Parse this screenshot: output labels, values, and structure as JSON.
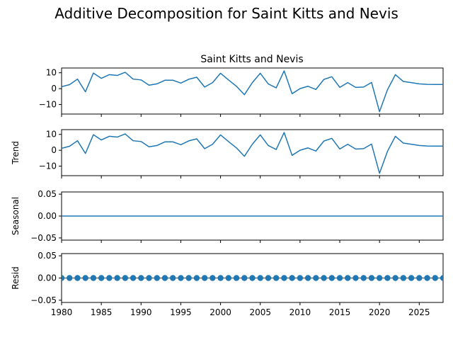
{
  "figure": {
    "suptitle": "Additive Decomposition for Saint Kitts and Nevis"
  },
  "chart_data": {
    "type": "line",
    "title": "Saint Kitts and Nevis",
    "x_label": "",
    "x_range": [
      1980,
      2028
    ],
    "x_ticks": [
      1980,
      1985,
      1990,
      1995,
      2000,
      2005,
      2010,
      2015,
      2020,
      2025
    ],
    "line_color": "#1f77b4",
    "x": [
      1980,
      1981,
      1982,
      1983,
      1984,
      1985,
      1986,
      1987,
      1988,
      1989,
      1990,
      1991,
      1992,
      1993,
      1994,
      1995,
      1996,
      1997,
      1998,
      1999,
      2000,
      2001,
      2002,
      2003,
      2004,
      2005,
      2006,
      2007,
      2008,
      2009,
      2010,
      2011,
      2012,
      2013,
      2014,
      2015,
      2016,
      2017,
      2018,
      2019,
      2020,
      2021,
      2022,
      2023,
      2024,
      2025,
      2026,
      2027,
      2028
    ],
    "panels": [
      {
        "name": "observed",
        "ylabel": "",
        "style": "line",
        "y_range": [
          -16,
          13
        ],
        "y_ticks": [
          10,
          0,
          -10
        ],
        "y_tick_labels": [
          "10",
          "0",
          "−10"
        ],
        "values": [
          1.2,
          2.5,
          6.0,
          -2.0,
          9.8,
          6.5,
          8.8,
          8.3,
          10.3,
          6.0,
          5.5,
          2.2,
          3.0,
          5.3,
          5.3,
          3.5,
          5.9,
          7.2,
          1.0,
          3.8,
          9.7,
          5.5,
          1.5,
          -3.8,
          3.8,
          9.7,
          3.0,
          0.5,
          11.2,
          -3.2,
          0.0,
          1.5,
          -0.5,
          5.8,
          7.5,
          0.8,
          3.8,
          0.8,
          1.0,
          3.9,
          -14.5,
          -0.7,
          8.8,
          4.5,
          3.8,
          3.0,
          2.7,
          2.6,
          2.6
        ]
      },
      {
        "name": "trend",
        "ylabel": "Trend",
        "style": "line",
        "y_range": [
          -16,
          13
        ],
        "y_ticks": [
          10,
          0,
          -10
        ],
        "y_tick_labels": [
          "10",
          "0",
          "−10"
        ],
        "values": [
          1.2,
          2.5,
          6.0,
          -2.0,
          9.8,
          6.5,
          8.8,
          8.3,
          10.3,
          6.0,
          5.5,
          2.2,
          3.0,
          5.3,
          5.3,
          3.5,
          5.9,
          7.2,
          1.0,
          3.8,
          9.7,
          5.5,
          1.5,
          -3.8,
          3.8,
          9.7,
          3.0,
          0.5,
          11.2,
          -3.2,
          0.0,
          1.5,
          -0.5,
          5.8,
          7.5,
          0.8,
          3.8,
          0.8,
          1.0,
          3.9,
          -14.5,
          -0.7,
          8.8,
          4.5,
          3.8,
          3.0,
          2.7,
          2.6,
          2.6
        ]
      },
      {
        "name": "seasonal",
        "ylabel": "Seasonal",
        "style": "line",
        "y_range": [
          -0.055,
          0.055
        ],
        "y_ticks": [
          0.05,
          0.0,
          -0.05
        ],
        "y_tick_labels": [
          "0.05",
          "0.00",
          "−0.05"
        ],
        "values": [
          0,
          0,
          0,
          0,
          0,
          0,
          0,
          0,
          0,
          0,
          0,
          0,
          0,
          0,
          0,
          0,
          0,
          0,
          0,
          0,
          0,
          0,
          0,
          0,
          0,
          0,
          0,
          0,
          0,
          0,
          0,
          0,
          0,
          0,
          0,
          0,
          0,
          0,
          0,
          0,
          0,
          0,
          0,
          0,
          0,
          0,
          0,
          0,
          0
        ]
      },
      {
        "name": "resid",
        "ylabel": "Resid",
        "style": "scatter",
        "y_range": [
          -0.055,
          0.055
        ],
        "y_ticks": [
          0.05,
          0.0,
          -0.05
        ],
        "y_tick_labels": [
          "0.05",
          "0.00",
          "−0.05"
        ],
        "baseline": true,
        "values": [
          0,
          0,
          0,
          0,
          0,
          0,
          0,
          0,
          0,
          0,
          0,
          0,
          0,
          0,
          0,
          0,
          0,
          0,
          0,
          0,
          0,
          0,
          0,
          0,
          0,
          0,
          0,
          0,
          0,
          0,
          0,
          0,
          0,
          0,
          0,
          0,
          0,
          0,
          0,
          0,
          0,
          0,
          0,
          0,
          0,
          0,
          0,
          0,
          0
        ]
      }
    ]
  }
}
